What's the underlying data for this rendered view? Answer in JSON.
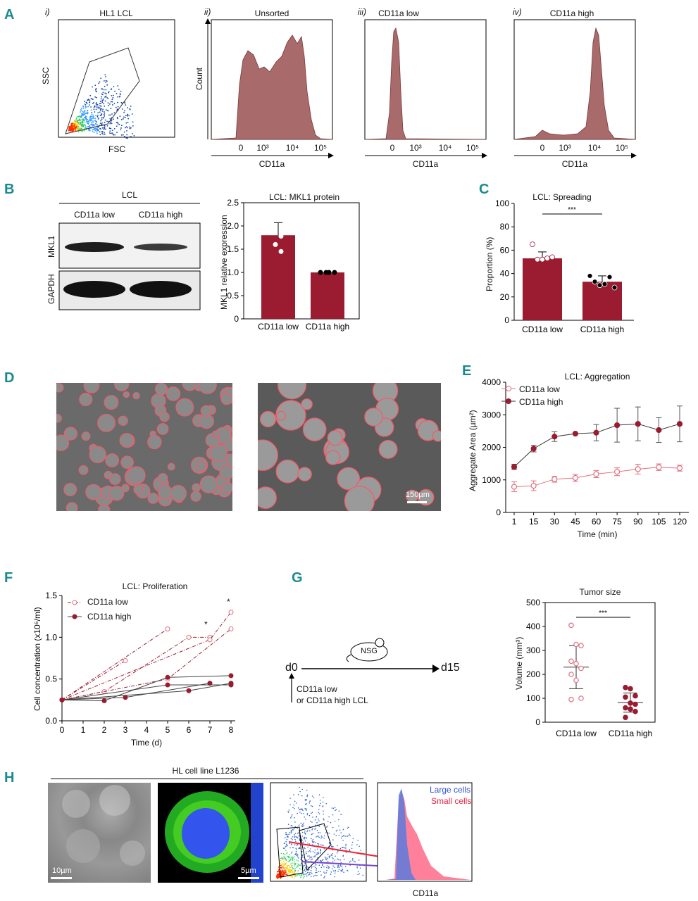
{
  "colors": {
    "teal": "#1b8a8f",
    "maroon": "#9b1b30",
    "pink": "#e07080",
    "histFill": "#a86a6a",
    "blue": "#5577dd",
    "red": "#ee2244"
  },
  "panelA": {
    "letter": "A",
    "sub": [
      {
        "roman": "i)",
        "title": "HL1 LCL",
        "xlabel": "FSC",
        "ylabel": "SSC"
      },
      {
        "roman": "ii)",
        "title": "Unsorted",
        "xlabel": "CD11a",
        "ylabel": "Count"
      },
      {
        "roman": "iii)",
        "title": "CD11a low",
        "xlabel": "CD11a"
      },
      {
        "roman": "iv)",
        "title": "CD11a high",
        "xlabel": "CD11a"
      }
    ],
    "ticks": [
      "0",
      "10³",
      "10⁴",
      "10⁵"
    ]
  },
  "panelB": {
    "letter": "B",
    "blot": {
      "group": "LCL",
      "lanes": [
        "CD11a low",
        "CD11a high"
      ],
      "rows": [
        "MKL1",
        "GAPDH"
      ]
    },
    "chart_data": {
      "type": "bar",
      "title": "LCL: MKL1 protein",
      "ylabel": "MKL1 relative expression",
      "categories": [
        "CD11a low",
        "CD11a high"
      ],
      "values": [
        1.8,
        1.0
      ],
      "errors": [
        0.27,
        0.0
      ],
      "points": [
        [
          2.0,
          1.78,
          1.6,
          1.45
        ],
        [
          1.0,
          1.0,
          1.0,
          1.0
        ]
      ],
      "ylim": [
        0,
        2.5
      ],
      "yticks": [
        "0",
        "0.5",
        "1.0",
        "1.5",
        "2.0",
        "2.5"
      ]
    }
  },
  "panelC": {
    "letter": "C",
    "chart_data": {
      "type": "bar",
      "title": "LCL: Spreading",
      "ylabel": "Proportion (%)",
      "categories": [
        "CD11a low",
        "CD11a high"
      ],
      "values": [
        53,
        33
      ],
      "errors": [
        5.5,
        5
      ],
      "points": [
        [
          65,
          52,
          52,
          53,
          54
        ],
        [
          38,
          33,
          30,
          31,
          37,
          28
        ]
      ],
      "ylim": [
        0,
        100
      ],
      "yticks": [
        "0",
        "20",
        "40",
        "60",
        "80",
        "100"
      ],
      "significance": "***"
    }
  },
  "panelD": {
    "letter": "D",
    "scalebar": "150µm"
  },
  "panelE": {
    "letter": "E",
    "chart_data": {
      "type": "line",
      "title": "LCL: Aggregation",
      "xlabel": "Time (min)",
      "ylabel": "Aggregate Area (µm²)",
      "x": [
        1,
        15,
        30,
        45,
        60,
        75,
        90,
        105,
        120
      ],
      "series": [
        {
          "name": "CD11a low",
          "values": [
            790,
            820,
            1020,
            1060,
            1180,
            1250,
            1330,
            1390,
            1360
          ],
          "errors": [
            150,
            150,
            90,
            110,
            110,
            120,
            150,
            100,
            90
          ]
        },
        {
          "name": "CD11a high",
          "values": [
            1400,
            1960,
            2330,
            2420,
            2450,
            2680,
            2720,
            2530,
            2720
          ],
          "errors": [
            80,
            100,
            150,
            0,
            250,
            520,
            520,
            380,
            550
          ]
        }
      ],
      "ylim": [
        0,
        4000
      ],
      "yticks": [
        "0",
        "1000",
        "2000",
        "3000",
        "4000"
      ],
      "xticks": [
        "1",
        "15",
        "30",
        "45",
        "60",
        "75",
        "90",
        "105",
        "120"
      ]
    }
  },
  "panelF": {
    "letter": "F",
    "chart_data": {
      "type": "line",
      "title": "LCL: Proliferation",
      "xlabel": "Time (d)",
      "ylabel": "Cell concentration (x10⁶/ml)",
      "xlim": [
        0,
        8
      ],
      "ylim": [
        0,
        1.5
      ],
      "yticks": [
        "0.0",
        "0.5",
        "1.0",
        "1.5"
      ],
      "xticks": [
        "0",
        "1",
        "2",
        "3",
        "4",
        "5",
        "6",
        "7",
        "8"
      ],
      "series": [
        {
          "name": "CD11a low",
          "lines": [
            [
              [
                0,
                0.25
              ],
              [
                3,
                0.72
              ]
            ],
            [
              [
                0,
                0.25
              ],
              [
                5,
                1.1
              ]
            ],
            [
              [
                0,
                0.25
              ],
              [
                2,
                0.35
              ],
              [
                6,
                1.0
              ],
              [
                7,
                1.0
              ]
            ],
            [
              [
                0,
                0.25
              ],
              [
                7,
                0.97
              ],
              [
                8,
                1.3
              ]
            ],
            [
              [
                0,
                0.25
              ],
              [
                5,
                0.5
              ],
              [
                8,
                1.1
              ]
            ]
          ]
        },
        {
          "name": "CD11a high",
          "lines": [
            [
              [
                0,
                0.25
              ],
              [
                2,
                0.24
              ],
              [
                5,
                0.52
              ],
              [
                8,
                0.54
              ]
            ],
            [
              [
                0,
                0.25
              ],
              [
                3,
                0.28
              ],
              [
                7,
                0.45
              ]
            ],
            [
              [
                0,
                0.25
              ],
              [
                5,
                0.43
              ],
              [
                8,
                0.43
              ]
            ],
            [
              [
                0,
                0.25
              ],
              [
                6,
                0.36
              ],
              [
                8,
                0.45
              ]
            ]
          ]
        }
      ],
      "annotations": [
        "*",
        "*"
      ]
    }
  },
  "panelG": {
    "letter": "G",
    "timeline": {
      "start": "d0",
      "end": "d15",
      "mouse": "NSG",
      "note1": "CD11a low",
      "note2": "or CD11a high LCL"
    },
    "chart_data": {
      "type": "scatter",
      "title": "Tumor size",
      "ylabel": "Volume (mm³)",
      "categories": [
        "CD11a low",
        "CD11a high"
      ],
      "means": [
        230,
        82
      ],
      "errors": [
        90,
        40
      ],
      "points": [
        [
          405,
          325,
          320,
          255,
          245,
          225,
          200,
          175,
          100,
          95
        ],
        [
          145,
          140,
          110,
          105,
          80,
          75,
          60,
          55,
          45,
          20
        ]
      ],
      "ylim": [
        0,
        500
      ],
      "yticks": [
        "0",
        "100",
        "200",
        "300",
        "400",
        "500"
      ],
      "significance": "***"
    }
  },
  "panelH": {
    "letter": "H",
    "title": "HL cell line L1236",
    "scale1": "10µm",
    "scale2": "5µm",
    "legend": [
      "Large cells",
      "Small cells"
    ],
    "xlabel": "CD11a"
  }
}
